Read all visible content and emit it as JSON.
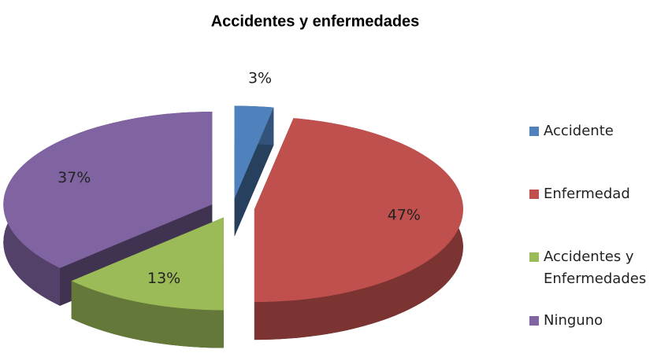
{
  "chart_data": {
    "type": "pie",
    "title": "Accidentes y enfermedades",
    "categories": [
      "Accidente",
      "Enfermedad",
      "Accidentes y Enfermedades",
      "Ninguno"
    ],
    "values": [
      3,
      47,
      13,
      37
    ],
    "value_labels": [
      "3%",
      "47%",
      "13%",
      "37%"
    ],
    "colors": [
      "#4f81bd",
      "#c0504d",
      "#9bbb59",
      "#8064a2"
    ],
    "legend": "right"
  }
}
